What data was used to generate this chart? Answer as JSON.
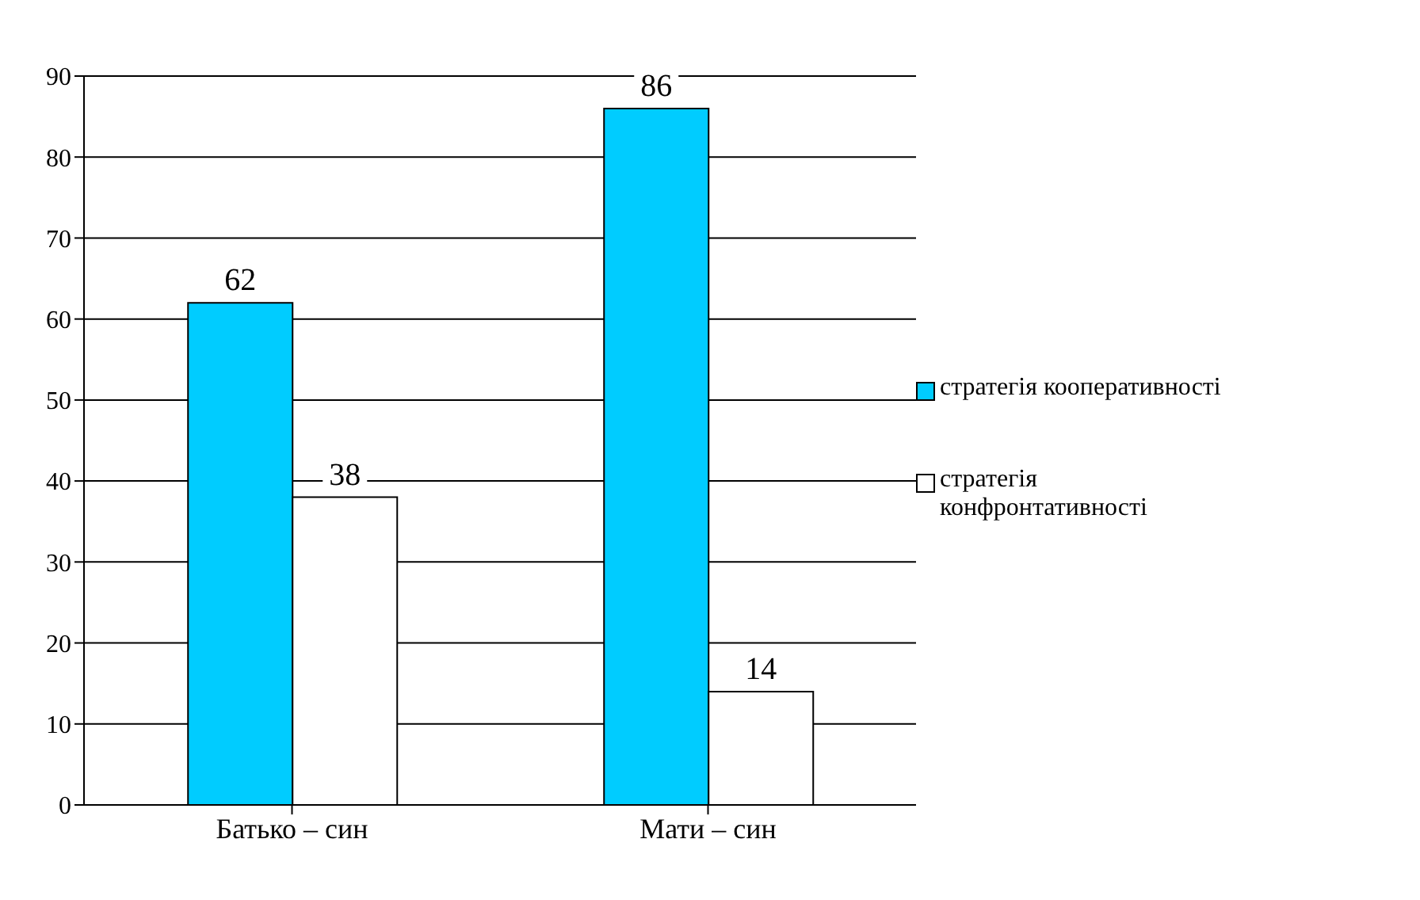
{
  "chart_data": {
    "type": "bar",
    "categories": [
      "Батько – син",
      "Мати – син"
    ],
    "series": [
      {
        "name": "стратегія кооперативності",
        "color": "#00ccff",
        "values": [
          62,
          86
        ]
      },
      {
        "name": "стратегія конфронтативності",
        "color": "#ffffff",
        "values": [
          38,
          14
        ]
      }
    ],
    "ylim": [
      0,
      90
    ],
    "yticks": [
      0,
      10,
      20,
      30,
      40,
      50,
      60,
      70,
      80,
      90
    ],
    "grid": "y",
    "legend": "right",
    "data_labels": true
  }
}
